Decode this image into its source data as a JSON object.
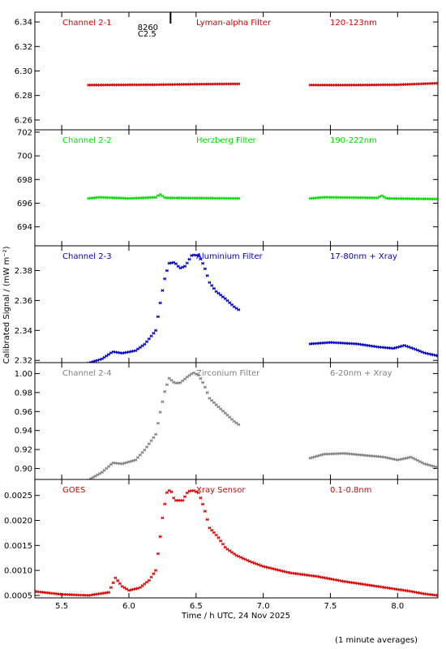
{
  "x_axis": {
    "label": "Time / h UTC, 24 Nov 2025",
    "ticks": [
      "5.5",
      "6.0",
      "6.5",
      "7.0",
      "7.5",
      "8.0"
    ],
    "tick_values": [
      5.5,
      6.0,
      6.5,
      7.0,
      7.5,
      8.0
    ],
    "range": [
      5.3,
      8.3
    ]
  },
  "y_axis_label": "Calibrated Signal / (mW m⁻²)",
  "footnote": "(1 minute averages)",
  "flare_marker": {
    "label_top": "8260",
    "label_bottom": "C2.5",
    "time": 6.31
  },
  "chart_data": [
    {
      "type": "scatter",
      "channel": "Channel 2-1",
      "filter": "Lyman-alpha Filter",
      "band": "120-123nm",
      "color": "#d40000",
      "ylim": [
        6.252,
        6.348
      ],
      "ticks": [
        "6.26",
        "6.28",
        "6.30",
        "6.32",
        "6.34"
      ],
      "tick_values": [
        6.26,
        6.28,
        6.3,
        6.32,
        6.34
      ],
      "series": [
        {
          "points": [
            [
              5.7,
              6.2885
            ],
            [
              6.2,
              6.2888
            ],
            [
              6.5,
              6.2892
            ],
            [
              6.83,
              6.2895
            ]
          ]
        },
        {
          "points": [
            [
              7.35,
              6.2885
            ],
            [
              7.7,
              6.2885
            ],
            [
              8.0,
              6.2888
            ],
            [
              8.3,
              6.29
            ]
          ]
        }
      ]
    },
    {
      "type": "scatter",
      "channel": "Channel 2-2",
      "filter": "Herzberg Filter",
      "band": "190-222nm",
      "color": "#00dd00",
      "ylim": [
        692.4,
        702.2
      ],
      "ticks": [
        "694",
        "696",
        "698",
        "700",
        "702"
      ],
      "tick_values": [
        694,
        696,
        698,
        700,
        702
      ],
      "series": [
        {
          "points": [
            [
              5.7,
              696.4
            ],
            [
              5.78,
              696.5
            ],
            [
              6.0,
              696.4
            ],
            [
              6.2,
              696.5
            ],
            [
              6.23,
              696.75
            ],
            [
              6.27,
              696.45
            ],
            [
              6.83,
              696.4
            ]
          ]
        },
        {
          "points": [
            [
              7.35,
              696.4
            ],
            [
              7.45,
              696.5
            ],
            [
              7.85,
              696.45
            ],
            [
              7.88,
              696.65
            ],
            [
              7.92,
              696.4
            ],
            [
              8.3,
              696.35
            ]
          ]
        }
      ]
    },
    {
      "type": "scatter",
      "channel": "Channel 2-3",
      "filter": "Aluminium Filter",
      "band": "17-80nm + Xray",
      "color": "#0000cc",
      "ylim": [
        2.3185,
        2.3965
      ],
      "ticks": [
        "2.32",
        "2.34",
        "2.36",
        "2.38"
      ],
      "tick_values": [
        2.32,
        2.34,
        2.36,
        2.38
      ],
      "series": [
        {
          "points": [
            [
              5.7,
              2.3182
            ],
            [
              5.8,
              2.321
            ],
            [
              5.88,
              2.3258
            ],
            [
              5.95,
              2.3248
            ],
            [
              6.05,
              2.3265
            ],
            [
              6.12,
              2.331
            ],
            [
              6.2,
              2.34
            ],
            [
              6.24,
              2.362
            ],
            [
              6.27,
              2.376
            ],
            [
              6.3,
              2.3848
            ],
            [
              6.34,
              2.3855
            ],
            [
              6.38,
              2.3815
            ],
            [
              6.42,
              2.383
            ],
            [
              6.47,
              2.3905
            ],
            [
              6.52,
              2.39
            ],
            [
              6.56,
              2.383
            ],
            [
              6.6,
              2.372
            ],
            [
              6.65,
              2.366
            ],
            [
              6.72,
              2.361
            ],
            [
              6.78,
              2.356
            ],
            [
              6.83,
              2.353
            ]
          ]
        },
        {
          "points": [
            [
              7.35,
              2.331
            ],
            [
              7.5,
              2.332
            ],
            [
              7.7,
              2.331
            ],
            [
              7.85,
              2.329
            ],
            [
              7.97,
              2.328
            ],
            [
              8.05,
              2.33
            ],
            [
              8.12,
              2.3278
            ],
            [
              8.2,
              2.325
            ],
            [
              8.3,
              2.323
            ]
          ]
        }
      ]
    },
    {
      "type": "scatter",
      "channel": "Channel 2-4",
      "filter": "Zirconium Filter",
      "band": "6-20nm + Xray",
      "color": "#808080",
      "ylim": [
        0.8885,
        1.0115
      ],
      "ticks": [
        "0.90",
        "0.92",
        "0.94",
        "0.96",
        "0.98",
        "1.00"
      ],
      "tick_values": [
        0.9,
        0.92,
        0.94,
        0.96,
        0.98,
        1.0
      ],
      "series": [
        {
          "points": [
            [
              5.7,
              0.888
            ],
            [
              5.8,
              0.896
            ],
            [
              5.88,
              0.906
            ],
            [
              5.95,
              0.905
            ],
            [
              6.05,
              0.909
            ],
            [
              6.12,
              0.92
            ],
            [
              6.2,
              0.936
            ],
            [
              6.24,
              0.964
            ],
            [
              6.27,
              0.983
            ],
            [
              6.3,
              0.995
            ],
            [
              6.34,
              0.99
            ],
            [
              6.38,
              0.99
            ],
            [
              6.43,
              0.996
            ],
            [
              6.48,
              1.001
            ],
            [
              6.52,
              0.998
            ],
            [
              6.56,
              0.988
            ],
            [
              6.6,
              0.974
            ],
            [
              6.65,
              0.967
            ],
            [
              6.72,
              0.958
            ],
            [
              6.78,
              0.95
            ],
            [
              6.83,
              0.945
            ]
          ]
        },
        {
          "points": [
            [
              7.35,
              0.911
            ],
            [
              7.45,
              0.915
            ],
            [
              7.6,
              0.916
            ],
            [
              7.75,
              0.914
            ],
            [
              7.9,
              0.912
            ],
            [
              8.0,
              0.909
            ],
            [
              8.1,
              0.912
            ],
            [
              8.2,
              0.905
            ],
            [
              8.3,
              0.901
            ]
          ]
        }
      ]
    },
    {
      "type": "scatter",
      "channel": "GOES",
      "filter": "Xray Sensor",
      "band": "0.1-0.8nm",
      "color": "#e00000",
      "ylim": [
        0.00045,
        0.00282
      ],
      "ticks": [
        "0.0005",
        "0.0010",
        "0.0015",
        "0.0020",
        "0.0025"
      ],
      "tick_values": [
        0.0005,
        0.001,
        0.0015,
        0.002,
        0.0025
      ],
      "series": [
        {
          "points": [
            [
              5.3,
              0.00058
            ],
            [
              5.5,
              0.00052
            ],
            [
              5.7,
              0.0005
            ],
            [
              5.85,
              0.00056
            ],
            [
              5.9,
              0.00085
            ],
            [
              5.95,
              0.00068
            ],
            [
              6.0,
              0.0006
            ],
            [
              6.08,
              0.00065
            ],
            [
              6.15,
              0.0008
            ],
            [
              6.2,
              0.001
            ],
            [
              6.23,
              0.0016
            ],
            [
              6.25,
              0.00205
            ],
            [
              6.28,
              0.00255
            ],
            [
              6.31,
              0.00262
            ],
            [
              6.34,
              0.0024
            ],
            [
              6.4,
              0.0024
            ],
            [
              6.44,
              0.00258
            ],
            [
              6.48,
              0.0026
            ],
            [
              6.52,
              0.00255
            ],
            [
              6.56,
              0.00225
            ],
            [
              6.6,
              0.00185
            ],
            [
              6.66,
              0.00168
            ],
            [
              6.72,
              0.00145
            ],
            [
              6.8,
              0.0013
            ],
            [
              6.9,
              0.00118
            ],
            [
              7.0,
              0.00108
            ],
            [
              7.2,
              0.00095
            ],
            [
              7.4,
              0.00088
            ],
            [
              7.6,
              0.00078
            ],
            [
              7.8,
              0.0007
            ],
            [
              8.0,
              0.00062
            ],
            [
              8.1,
              0.00058
            ],
            [
              8.2,
              0.00053
            ],
            [
              8.3,
              0.0005
            ]
          ]
        }
      ]
    }
  ]
}
